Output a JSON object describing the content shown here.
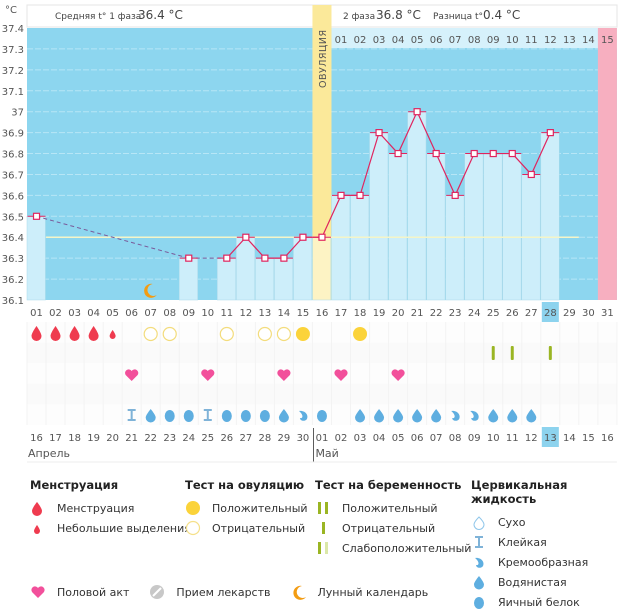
{
  "header": {
    "unit": "°C",
    "phase1_label": "Средняя t° 1 фаза",
    "phase1_value": "36.4 °C",
    "phase2_label": "2 фаза",
    "phase2_value": "36.8 °C",
    "diff_label": "Разница t°",
    "diff_value": "0.4 °C",
    "ovulation_label": "ОВУЛЯЦИЯ"
  },
  "chart_data": {
    "type": "line",
    "title": "",
    "ylabel": "°C",
    "ylim": [
      36.1,
      37.4
    ],
    "yticks": [
      "36.1",
      "36.2",
      "36.3",
      "36.4",
      "36.5",
      "36.6",
      "36.7",
      "36.8",
      "36.9",
      "37",
      "37.1",
      "37.2",
      "37.3",
      "37.4"
    ],
    "cycle_days": [
      "01",
      "02",
      "03",
      "04",
      "05",
      "06",
      "07",
      "08",
      "09",
      "10",
      "11",
      "12",
      "13",
      "14",
      "15",
      "16",
      "17",
      "18",
      "19",
      "20",
      "21",
      "22",
      "23",
      "24",
      "25",
      "26",
      "27",
      "28",
      "29",
      "30",
      "31"
    ],
    "temperatures": [
      36.5,
      null,
      null,
      null,
      null,
      null,
      null,
      null,
      36.3,
      null,
      36.3,
      36.4,
      36.3,
      36.3,
      36.4,
      36.4,
      36.6,
      36.6,
      36.9,
      36.8,
      37.0,
      36.8,
      36.6,
      36.8,
      36.8,
      36.8,
      36.7,
      36.9,
      null,
      null,
      null
    ],
    "coverline": 36.4,
    "ovulation_day": 16,
    "today_cycle_day": 28,
    "next_period_day": 31,
    "phase2_day_labels": [
      "01",
      "02",
      "03",
      "04",
      "05",
      "06",
      "07",
      "08",
      "09",
      "10",
      "11",
      "12",
      "13",
      "14",
      "15"
    ],
    "calendar_dates": [
      "16",
      "17",
      "18",
      "19",
      "20",
      "21",
      "22",
      "23",
      "24",
      "25",
      "26",
      "27",
      "28",
      "29",
      "30",
      "01",
      "02",
      "03",
      "04",
      "05",
      "06",
      "07",
      "08",
      "09",
      "10",
      "11",
      "12",
      "13",
      "14",
      "15",
      "16"
    ],
    "weekend_dates_idx": [
      2,
      3,
      9,
      10,
      16,
      17,
      23,
      24,
      30
    ],
    "months": [
      {
        "label": "Апрель",
        "start_idx": 0
      },
      {
        "label": "Май",
        "start_idx": 15
      }
    ],
    "menstruation": [
      "heavy",
      "heavy",
      "heavy",
      "heavy",
      "light",
      null,
      null,
      null,
      null,
      null,
      null,
      null,
      null,
      null,
      null,
      null,
      null,
      null,
      null,
      null,
      null,
      null,
      null,
      null,
      null,
      null,
      null,
      null,
      null,
      null,
      null
    ],
    "ovulation_test": [
      null,
      null,
      null,
      null,
      null,
      null,
      "negative",
      "negative",
      null,
      null,
      "negative",
      null,
      "negative",
      "negative",
      "positive",
      null,
      null,
      "positive",
      null,
      null,
      null,
      null,
      null,
      null,
      null,
      null,
      null,
      null,
      null,
      null,
      null
    ],
    "pregnancy_test": [
      null,
      null,
      null,
      null,
      null,
      null,
      null,
      null,
      null,
      null,
      null,
      null,
      null,
      null,
      null,
      null,
      null,
      null,
      null,
      null,
      null,
      null,
      null,
      null,
      "negative",
      "negative",
      null,
      "negative",
      null,
      null,
      null
    ],
    "intercourse": [
      null,
      null,
      null,
      null,
      null,
      true,
      null,
      null,
      null,
      true,
      null,
      null,
      null,
      true,
      null,
      null,
      true,
      null,
      null,
      true,
      null,
      null,
      null,
      null,
      null,
      null,
      null,
      null,
      null,
      null,
      null
    ],
    "lunar": [
      null,
      null,
      null,
      null,
      null,
      null,
      "moon",
      null,
      null,
      null,
      null,
      null,
      null,
      null,
      null,
      null,
      null,
      null,
      null,
      null,
      null,
      null,
      null,
      null,
      null,
      null,
      null,
      null,
      null,
      null,
      null
    ],
    "cervical_fluid": [
      null,
      null,
      null,
      null,
      null,
      "sticky",
      "watery",
      "eggwhite",
      "eggwhite",
      "sticky",
      "eggwhite",
      "eggwhite",
      "eggwhite",
      "watery",
      "creamy",
      "eggwhite",
      null,
      "watery",
      "watery",
      "watery",
      "watery",
      "watery",
      "creamy",
      "creamy",
      "watery",
      "watery",
      "watery",
      null,
      null,
      null,
      null
    ]
  },
  "colors": {
    "bg_blue": "#8dd6ef",
    "bar_light": "#cdeefa",
    "ovulation_yellow": "#fbe99a",
    "period_pink": "#f7afc0",
    "line_red": "#e0245e",
    "coverline": "#f5f5c8",
    "drop_red": "#ef3b4f",
    "heart_pink": "#f2509b",
    "ovu_yellow": "#fbd33a",
    "preg_green": "#9ab523",
    "fluid_blue": "#5eaee0",
    "moon_orange": "#f39c12"
  },
  "legend": {
    "menstruation": {
      "title": "Менструация",
      "items": [
        "Менструация",
        "Небольшие выделения"
      ]
    },
    "ovulation_test": {
      "title": "Тест на овуляцию",
      "items": [
        "Положительный",
        "Отрицательный"
      ]
    },
    "pregnancy_test": {
      "title": "Тест на беременность",
      "items": [
        "Положительный",
        "Отрицательный",
        "Слабоположительный"
      ]
    },
    "cervical_fluid": {
      "title": "Цервикальная жидкость",
      "items": [
        "Сухо",
        "Клейкая",
        "Кремообразная",
        "Водянистая",
        "Яичный белок"
      ]
    },
    "bottom": [
      "Половой акт",
      "Прием лекарств",
      "Лунный календарь"
    ]
  }
}
